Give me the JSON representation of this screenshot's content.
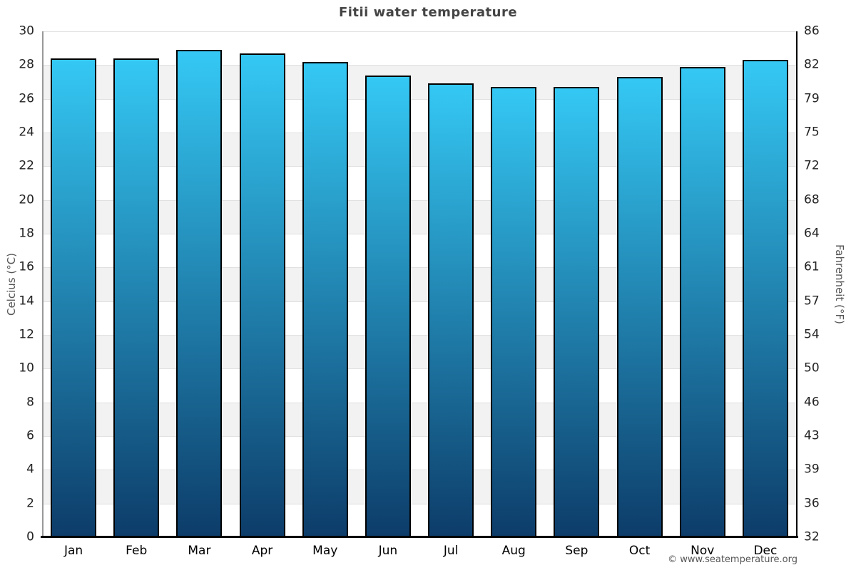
{
  "title": "Fitii water temperature",
  "watermark": "© www.seatemperature.org",
  "chart_data": {
    "type": "bar",
    "title": "Fitii water temperature",
    "categories": [
      "Jan",
      "Feb",
      "Mar",
      "Apr",
      "May",
      "Jun",
      "Jul",
      "Aug",
      "Sep",
      "Oct",
      "Nov",
      "Dec"
    ],
    "values": [
      28.4,
      28.4,
      28.9,
      28.7,
      28.2,
      27.4,
      26.9,
      26.7,
      26.7,
      27.3,
      27.9,
      28.3
    ],
    "ylabel_left": "Celcius (°C)",
    "ylabel_right": "Fahrenheit (°F)",
    "ylim": [
      0,
      30
    ],
    "celsius_ticks": [
      30,
      28,
      26,
      24,
      22,
      20,
      18,
      16,
      14,
      12,
      10,
      8,
      6,
      4,
      2,
      0
    ],
    "fahrenheit_ticks": [
      86,
      82,
      79,
      75,
      72,
      68,
      64,
      61,
      57,
      54,
      50,
      46,
      43,
      39,
      36,
      32
    ],
    "grid": "horizontal alternating bands every 2°C, gridlines at each tick",
    "legend": "none"
  },
  "colors": {
    "background": "#ffffff",
    "band_gray": "#f2f2f2",
    "band_white": "#ffffff",
    "gridline": "#e0e0e0",
    "bar_top": "#35c8f4",
    "bar_bottom": "#0d3c69",
    "bar_border": "#000000",
    "baseline": "#000000",
    "left_axis_line": "#999999",
    "right_axis_line": "#000000",
    "title": "#444444",
    "tick_label": "#222222",
    "axis_title": "#555555",
    "watermark": "#555555"
  }
}
